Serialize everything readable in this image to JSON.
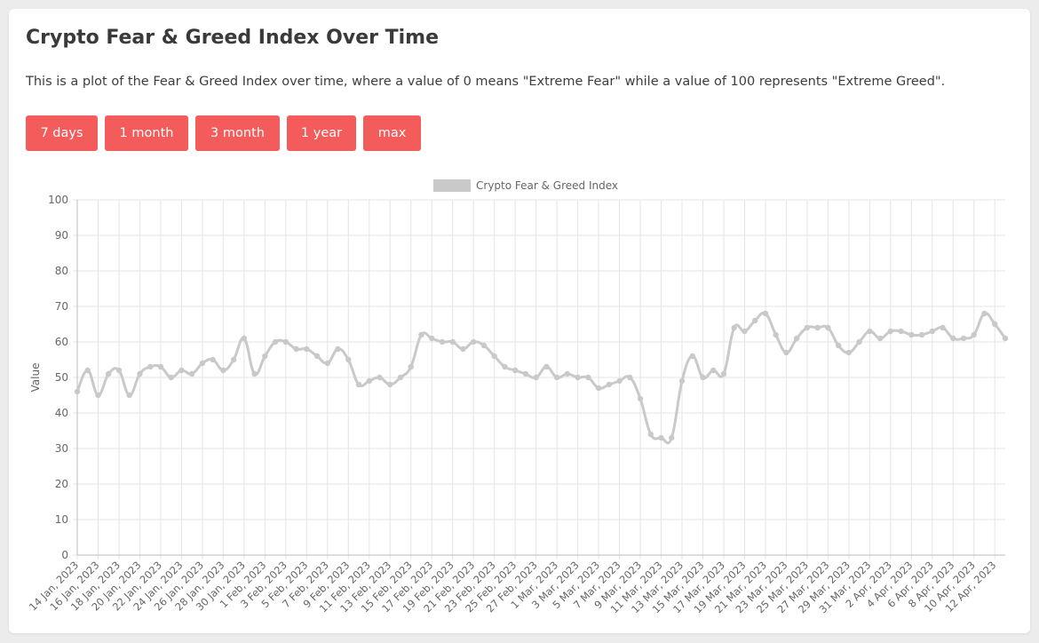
{
  "header": {
    "title": "Crypto Fear & Greed Index Over Time",
    "description": "This is a plot of the Fear & Greed Index over time, where a value of 0 means \"Extreme Fear\" while a value of 100 represents \"Extreme Greed\"."
  },
  "range_buttons": [
    {
      "label": "7 days"
    },
    {
      "label": "1 month"
    },
    {
      "label": "3 month"
    },
    {
      "label": "1 year"
    },
    {
      "label": "max"
    }
  ],
  "colors": {
    "button": "#f45b5b",
    "line": "#c9c9c9",
    "grid": "#e5e5e5",
    "axis_text": "#666666"
  },
  "chart_data": {
    "type": "line",
    "title": "",
    "legend": {
      "label": "Crypto Fear & Greed Index",
      "placement": "top"
    },
    "ylabel": "Value",
    "xlabel": "",
    "ylim": [
      0,
      100
    ],
    "yticks": [
      0,
      10,
      20,
      30,
      40,
      50,
      60,
      70,
      80,
      90,
      100
    ],
    "grid": true,
    "smooth": true,
    "xtick_labels": [
      "14 Jan, 2023",
      "16 Jan, 2023",
      "18 Jan, 2023",
      "20 Jan, 2023",
      "22 Jan, 2023",
      "24 Jan, 2023",
      "26 Jan, 2023",
      "28 Jan, 2023",
      "30 Jan, 2023",
      "1 Feb, 2023",
      "3 Feb, 2023",
      "5 Feb, 2023",
      "7 Feb, 2023",
      "9 Feb, 2023",
      "11 Feb, 2023",
      "13 Feb, 2023",
      "15 Feb, 2023",
      "17 Feb, 2023",
      "19 Feb, 2023",
      "21 Feb, 2023",
      "23 Feb, 2023",
      "25 Feb, 2023",
      "27 Feb, 2023",
      "1 Mar, 2023",
      "3 Mar, 2023",
      "5 Mar, 2023",
      "7 Mar, 2023",
      "9 Mar, 2023",
      "11 Mar, 2023",
      "13 Mar, 2023",
      "15 Mar, 2023",
      "17 Mar, 2023",
      "19 Mar, 2023",
      "21 Mar, 2023",
      "23 Mar, 2023",
      "25 Mar, 2023",
      "27 Mar, 2023",
      "29 Mar, 2023",
      "31 Mar, 2023",
      "2 Apr, 2023",
      "4 Apr, 2023",
      "6 Apr, 2023",
      "8 Apr, 2023",
      "10 Apr, 2023",
      "12 Apr, 2023"
    ],
    "series": [
      {
        "name": "Crypto Fear & Greed Index",
        "values": [
          46,
          52,
          45,
          51,
          52,
          45,
          51,
          53,
          53,
          50,
          52,
          51,
          54,
          55,
          52,
          55,
          61,
          51,
          56,
          60,
          60,
          58,
          58,
          56,
          54,
          58,
          55,
          48,
          49,
          50,
          48,
          50,
          53,
          62,
          61,
          60,
          60,
          58,
          60,
          59,
          56,
          53,
          52,
          51,
          50,
          53,
          50,
          51,
          50,
          50,
          47,
          48,
          49,
          50,
          44,
          34,
          33,
          33,
          49,
          56,
          50,
          52,
          51,
          64,
          63,
          66,
          68,
          62,
          57,
          61,
          64,
          64,
          64,
          59,
          57,
          60,
          63,
          61,
          63,
          63,
          62,
          62,
          63,
          64,
          61,
          61,
          62,
          68,
          65,
          61
        ]
      }
    ]
  }
}
